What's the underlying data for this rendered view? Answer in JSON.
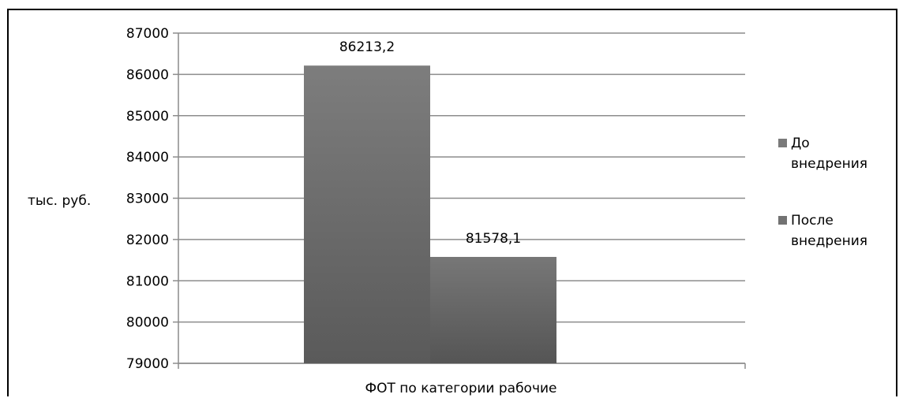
{
  "chart_data": {
    "type": "bar",
    "title": "",
    "ylabel": "тыс. руб.",
    "categories": [
      "ФОТ по категории рабочие"
    ],
    "series": [
      {
        "name": "До внедрения",
        "name_lines": [
          "До",
          "внедрения"
        ],
        "values": [
          86213.2
        ],
        "data_labels": [
          "86213,2"
        ],
        "color": "#7a7a7a"
      },
      {
        "name": "После внедрения",
        "name_lines": [
          "После",
          "внедрения"
        ],
        "values": [
          81578.1
        ],
        "data_labels": [
          "81578,1"
        ],
        "color": "#727272"
      }
    ],
    "ylim": [
      79000,
      87000
    ],
    "yticks": [
      79000,
      80000,
      81000,
      82000,
      83000,
      84000,
      85000,
      86000,
      87000
    ],
    "grid": true,
    "legend_position": "right"
  }
}
